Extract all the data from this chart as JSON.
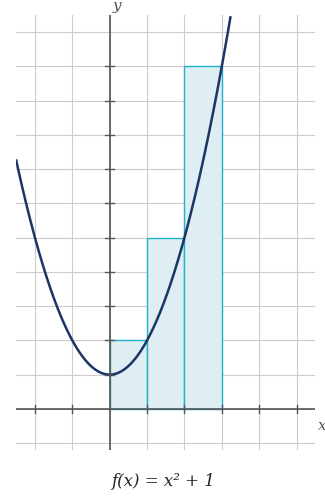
{
  "title": "f(x) = x² + 1",
  "xlim": [
    -2.5,
    5.5
  ],
  "ylim": [
    -1.2,
    11.5
  ],
  "x_grid": [
    -2,
    -1,
    0,
    1,
    2,
    3,
    4,
    5
  ],
  "y_grid": [
    -1,
    0,
    1,
    2,
    3,
    4,
    5,
    6,
    7,
    8,
    9,
    10,
    11
  ],
  "x_ticks": [
    -2,
    -1,
    1,
    2,
    3,
    4,
    5
  ],
  "y_ticks": [
    1,
    2,
    3,
    4,
    5,
    6,
    7,
    8,
    9,
    10
  ],
  "interval_start": 0,
  "interval_end": 3,
  "n_rectangles": 3,
  "rect_fill_color": "#deeef2",
  "rect_edge_color": "#20b2c8",
  "curve_color": "#1a3566",
  "curve_linewidth": 1.8,
  "axis_color": "#555555",
  "grid_color": "#cccccc",
  "grid_linewidth": 0.8,
  "background_color": "#ffffff",
  "tick_size": 0.12
}
